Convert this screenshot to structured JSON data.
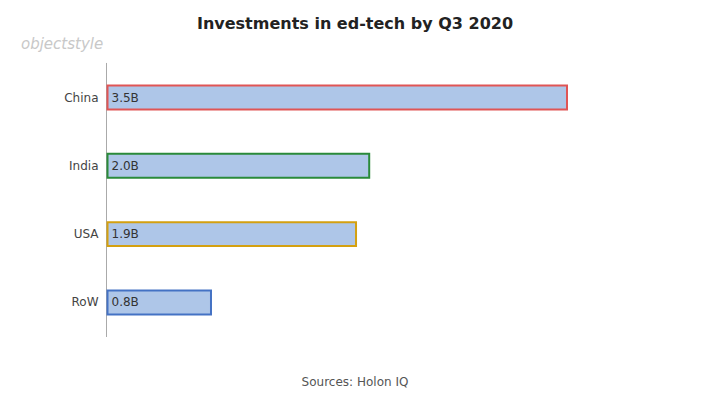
{
  "chart_data": {
    "type": "bar",
    "orientation": "horizontal",
    "title": "Investments in ed-tech by Q3 2020",
    "categories": [
      "China",
      "India",
      "USA",
      "RoW"
    ],
    "values": [
      3.5,
      2.0,
      1.9,
      0.8
    ],
    "value_labels": [
      "3.5B",
      "2.0B",
      "1.9B",
      "0.8B"
    ],
    "data_labels": true,
    "color": "#aec6e8",
    "colors": [
      "#e05555",
      "#2a8a3a",
      "#d4a010",
      "#4472c4"
    ],
    "xlim": [
      0,
      4.2
    ],
    "grid": false,
    "tick_labels": "y",
    "annotations": [
      "Sources: Holon IQ",
      "objectstyle"
    ]
  }
}
